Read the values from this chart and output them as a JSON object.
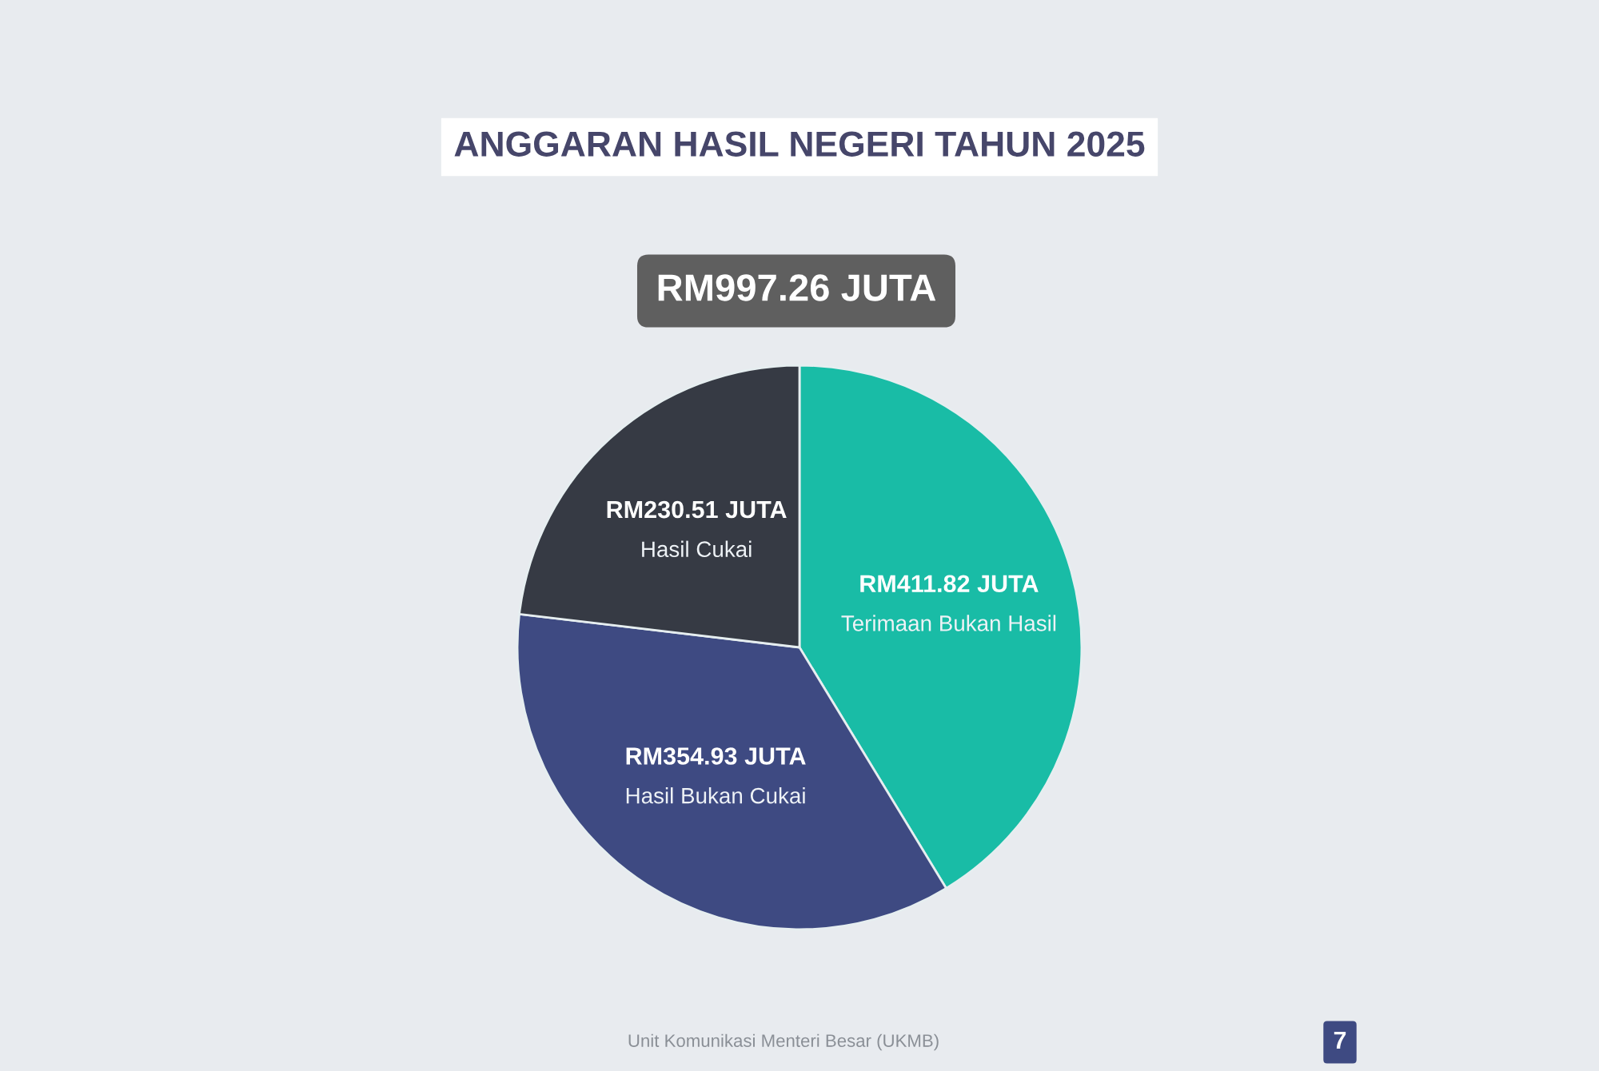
{
  "chart_data": {
    "type": "pie",
    "title": "ANGGARAN HASIL NEGERI TAHUN 2025",
    "subtitle": "RM997.26 JUTA",
    "categories": [
      "Terimaan Bukan Hasil",
      "Hasil Bukan Cukai",
      "Hasil Cukai"
    ],
    "values": [
      411.82,
      354.93,
      230.51
    ],
    "colors": [
      "#19bca6",
      "#3e4a82",
      "#363a44"
    ],
    "value_labels": [
      "RM411.82 JUTA",
      "RM354.93 JUTA",
      "RM230.51 JUTA"
    ],
    "annotations": [
      "Unit Komunikasi Menteri Besar (UKMB)",
      "7"
    ]
  }
}
